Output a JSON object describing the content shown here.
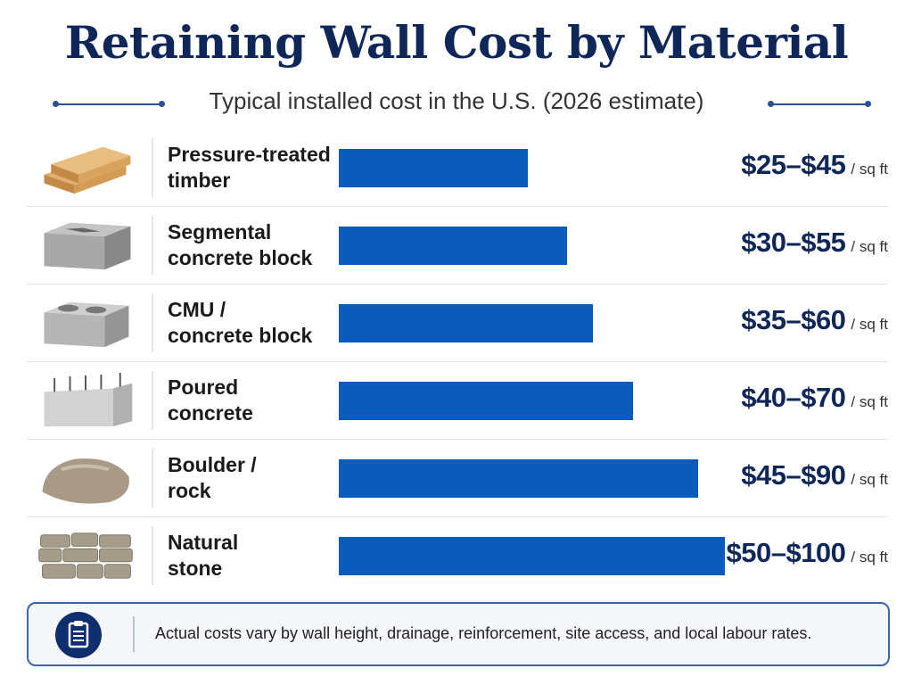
{
  "title": "Retaining Wall Cost by Material",
  "subtitle": "Typical installed cost in the U.S. (2026 estimate)",
  "colors": {
    "title": "#0e2658",
    "bar": "#0b5bbc",
    "accent": "#2a4f92"
  },
  "chart_data": {
    "type": "bar",
    "orientation": "horizontal",
    "unit": "/ sq ft",
    "categories": [
      "Pressure-treated timber",
      "Segmental concrete block",
      "CMU / concrete block",
      "Poured concrete",
      "Boulder / rock",
      "Natural stone"
    ],
    "rows": [
      {
        "label_lines": [
          "Pressure-treated",
          "timber"
        ],
        "icon": "timber-icon",
        "low": 25,
        "high": 45,
        "value_label": "$25–$45"
      },
      {
        "label_lines": [
          "Segmental",
          "concrete block"
        ],
        "icon": "segmental-block-icon",
        "low": 30,
        "high": 55,
        "value_label": "$30–$55"
      },
      {
        "label_lines": [
          "CMU /",
          "concrete block"
        ],
        "icon": "cmu-block-icon",
        "low": 35,
        "high": 60,
        "value_label": "$35–$60"
      },
      {
        "label_lines": [
          "Poured",
          "concrete"
        ],
        "icon": "poured-concrete-icon",
        "low": 40,
        "high": 70,
        "value_label": "$40–$70"
      },
      {
        "label_lines": [
          "Boulder /",
          "rock"
        ],
        "icon": "boulder-icon",
        "low": 45,
        "high": 90,
        "value_label": "$45–$90"
      },
      {
        "label_lines": [
          "Natural",
          "stone"
        ],
        "icon": "natural-stone-icon",
        "low": 50,
        "high": 100,
        "value_label": "$50–$100"
      }
    ],
    "grid": false,
    "legend": "none"
  },
  "note": {
    "icon": "clipboard-icon",
    "text": "Actual costs vary by wall height, drainage, reinforcement, site access, and local labour rates."
  }
}
